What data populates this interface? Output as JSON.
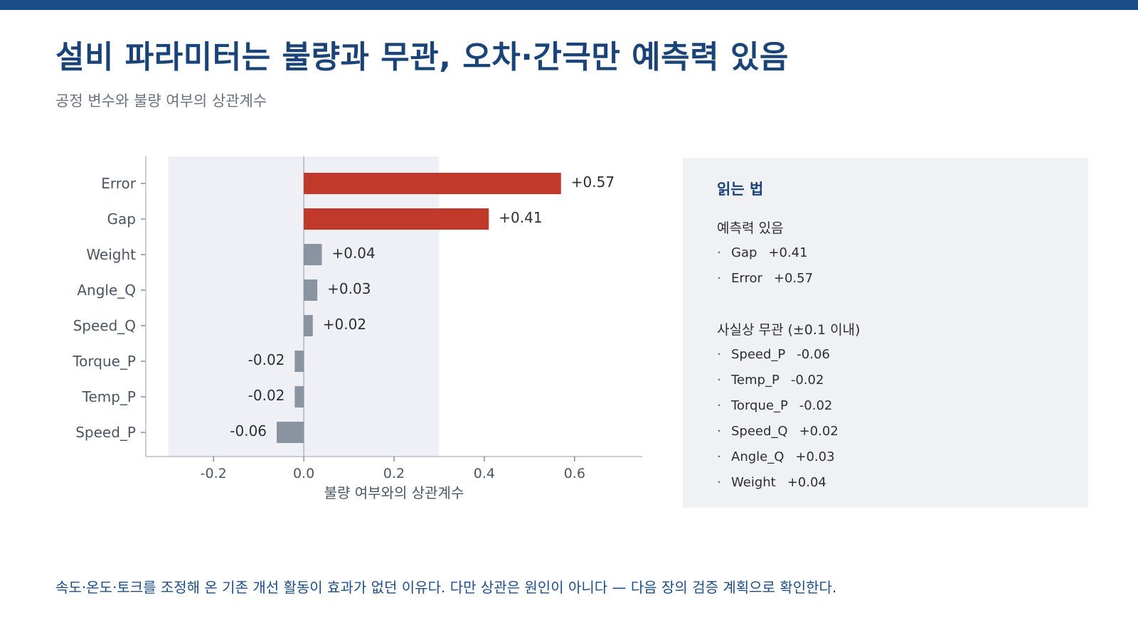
{
  "header": {
    "title": "설비 파라미터는 불량과 무관, 오차·간극만 예측력 있음",
    "subtitle": "공정 변수와 불량 여부의 상관계수"
  },
  "colors": {
    "top_bar": "#1b4d89",
    "title": "#1a4378",
    "highlight_bar": "#c0392b",
    "neutral_bar": "#8a93a0",
    "noise_band": "#eef0f5",
    "panel_bg": "#f0f1f5"
  },
  "chart_data": {
    "type": "bar",
    "orientation": "horizontal",
    "categories": [
      "Error",
      "Gap",
      "Weight",
      "Angle_Q",
      "Speed_Q",
      "Torque_P",
      "Temp_P",
      "Speed_P"
    ],
    "values": [
      0.57,
      0.41,
      0.04,
      0.03,
      0.02,
      -0.02,
      -0.02,
      -0.06
    ],
    "value_labels": [
      "+0.57",
      "+0.41",
      "+0.04",
      "+0.03",
      "+0.02",
      "-0.02",
      "-0.02",
      "-0.06"
    ],
    "highlighted": [
      "Error",
      "Gap"
    ],
    "xlabel": "불량 여부와의 상관계수",
    "xlim": [
      -0.35,
      0.75
    ],
    "xticks": [
      -0.2,
      0.0,
      0.2,
      0.4,
      0.6
    ],
    "xtick_labels": [
      "-0.2",
      "0.0",
      "0.2",
      "0.4",
      "0.6"
    ],
    "shaded_band": [
      -0.3,
      0.3
    ],
    "grid": false
  },
  "legend": {
    "title": "읽는 법",
    "groups": [
      {
        "title": "예측력 있음",
        "items": [
          {
            "bullet": "·",
            "name": "Gap",
            "value": "+0.41"
          },
          {
            "bullet": "·",
            "name": "Error",
            "value": "+0.57"
          }
        ]
      },
      {
        "title": "사실상 무관 (±0.1 이내)",
        "items": [
          {
            "bullet": "·",
            "name": "Speed_P",
            "value": "-0.06"
          },
          {
            "bullet": "·",
            "name": "Temp_P",
            "value": "-0.02"
          },
          {
            "bullet": "·",
            "name": "Torque_P",
            "value": "-0.02"
          },
          {
            "bullet": "·",
            "name": "Speed_Q",
            "value": "+0.02"
          },
          {
            "bullet": "·",
            "name": "Angle_Q",
            "value": "+0.03"
          },
          {
            "bullet": "·",
            "name": "Weight",
            "value": "+0.04"
          }
        ]
      }
    ]
  },
  "footer": {
    "note": "속도·온도·토크를 조정해 온 기존 개선 활동이 효과가 없던 이유다. 다만 상관은 원인이 아니다 — 다음 장의 검증 계획으로 확인한다."
  }
}
